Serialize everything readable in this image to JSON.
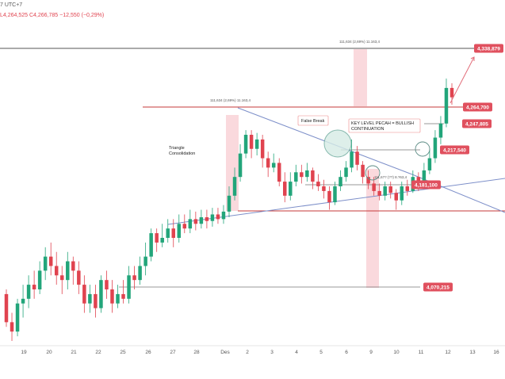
{
  "header": {
    "symbol_suffix": "7 UTC+7",
    "ohlc": "L4,264,525  C4,266,785  −12,550 (−0,29%)"
  },
  "chart_data": {
    "type": "candlestick",
    "y_range": [
      4030,
      4360
    ],
    "x_labels": [
      "19",
      "20",
      "21",
      "22",
      "25",
      "26",
      "27",
      "28",
      "Des",
      "2",
      "3",
      "4",
      "5",
      "6",
      "9",
      "10",
      "11",
      "12",
      "13",
      "16"
    ],
    "price_levels": [
      {
        "value": "4,338,879",
        "num": 4338.9,
        "style": "target"
      },
      {
        "value": "4,264,700",
        "num": 4264.7,
        "style": "resistance"
      },
      {
        "value": "4,247,805",
        "num": 4247.8,
        "style": "level"
      },
      {
        "value": "4,217,540",
        "num": 4217.5,
        "style": "level"
      },
      {
        "value": "4,181,100",
        "num": 4181.1,
        "style": "level"
      },
      {
        "value": "4,070,215",
        "num": 4070.2,
        "style": "support"
      }
    ],
    "annotations": {
      "triangle": "Triangle\nConsolidation",
      "false_break": "False Break",
      "key_level": "KEY LEVEL PECAH = BULLISH\nCONTINUATION",
      "measure_1": "111,634 (2,69%) 11.163,4",
      "measure_2": "111,634 (2,69%) 11.163,4",
      "measure_3": "111,6?? (??) 8.?63,4"
    },
    "candles": [
      [
        4080,
        4050,
        4085,
        4045
      ],
      [
        4050,
        4040,
        4060,
        4030
      ],
      [
        4040,
        4070,
        4075,
        4035
      ],
      [
        4070,
        4075,
        4090,
        4055
      ],
      [
        4075,
        4090,
        4100,
        4065
      ],
      [
        4090,
        4085,
        4105,
        4075
      ],
      [
        4085,
        4105,
        4115,
        4080
      ],
      [
        4105,
        4120,
        4130,
        4095
      ],
      [
        4120,
        4110,
        4135,
        4100
      ],
      [
        4110,
        4100,
        4125,
        4090
      ],
      [
        4100,
        4095,
        4110,
        4080
      ],
      [
        4095,
        4115,
        4125,
        4085
      ],
      [
        4115,
        4105,
        4120,
        4090
      ],
      [
        4105,
        4090,
        4115,
        4080
      ],
      [
        4090,
        4070,
        4100,
        4060
      ],
      [
        4070,
        4080,
        4090,
        4060
      ],
      [
        4080,
        4065,
        4090,
        4055
      ],
      [
        4065,
        4095,
        4100,
        4060
      ],
      [
        4095,
        4085,
        4105,
        4075
      ],
      [
        4085,
        4070,
        4095,
        4060
      ],
      [
        4070,
        4080,
        4090,
        4065
      ],
      [
        4080,
        4075,
        4095,
        4070
      ],
      [
        4075,
        4100,
        4110,
        4070
      ],
      [
        4100,
        4095,
        4110,
        4085
      ],
      [
        4095,
        4110,
        4120,
        4090
      ],
      [
        4110,
        4120,
        4135,
        4100
      ],
      [
        4120,
        4145,
        4150,
        4115
      ],
      [
        4145,
        4135,
        4150,
        4125
      ],
      [
        4135,
        4140,
        4155,
        4130
      ],
      [
        4140,
        4150,
        4160,
        4135
      ],
      [
        4150,
        4140,
        4160,
        4130
      ],
      [
        4140,
        4155,
        4165,
        4135
      ],
      [
        4155,
        4150,
        4165,
        4145
      ],
      [
        4150,
        4160,
        4170,
        4145
      ],
      [
        4160,
        4155,
        4168,
        4148
      ],
      [
        4155,
        4162,
        4170,
        4150
      ],
      [
        4162,
        4158,
        4170,
        4150
      ],
      [
        4158,
        4165,
        4172,
        4152
      ],
      [
        4165,
        4160,
        4172,
        4155
      ],
      [
        4160,
        4168,
        4175,
        4155
      ],
      [
        4168,
        4185,
        4195,
        4162
      ],
      [
        4185,
        4205,
        4215,
        4180
      ],
      [
        4205,
        4230,
        4240,
        4200
      ],
      [
        4230,
        4250,
        4255,
        4225
      ],
      [
        4250,
        4235,
        4255,
        4225
      ],
      [
        4235,
        4245,
        4252,
        4228
      ],
      [
        4245,
        4225,
        4250,
        4215
      ],
      [
        4225,
        4215,
        4232,
        4205
      ],
      [
        4215,
        4220,
        4230,
        4210
      ],
      [
        4220,
        4200,
        4225,
        4195
      ],
      [
        4200,
        4185,
        4210,
        4178
      ],
      [
        4185,
        4200,
        4210,
        4180
      ],
      [
        4200,
        4210,
        4218,
        4195
      ],
      [
        4210,
        4205,
        4218,
        4198
      ],
      [
        4205,
        4212,
        4220,
        4200
      ],
      [
        4212,
        4200,
        4215,
        4192
      ],
      [
        4200,
        4195,
        4208,
        4190
      ],
      [
        4195,
        4190,
        4202,
        4182
      ],
      [
        4190,
        4178,
        4195,
        4170
      ],
      [
        4178,
        4195,
        4200,
        4175
      ],
      [
        4195,
        4205,
        4212,
        4190
      ],
      [
        4205,
        4215,
        4222,
        4200
      ],
      [
        4215,
        4232,
        4245,
        4210
      ],
      [
        4232,
        4218,
        4238,
        4212
      ],
      [
        4218,
        4205,
        4222,
        4198
      ],
      [
        4205,
        4198,
        4212,
        4192
      ],
      [
        4198,
        4190,
        4205,
        4185
      ],
      [
        4190,
        4185,
        4198,
        4180
      ],
      [
        4185,
        4195,
        4200,
        4180
      ],
      [
        4195,
        4188,
        4200,
        4182
      ],
      [
        4188,
        4180,
        4192,
        4170
      ],
      [
        4180,
        4195,
        4200,
        4175
      ],
      [
        4195,
        4190,
        4202,
        4185
      ],
      [
        4190,
        4205,
        4212,
        4188
      ],
      [
        4205,
        4198,
        4210,
        4190
      ],
      [
        4198,
        4212,
        4220,
        4195
      ],
      [
        4212,
        4225,
        4235,
        4208
      ],
      [
        4225,
        4247,
        4255,
        4220
      ],
      [
        4247,
        4262,
        4270,
        4240
      ],
      [
        4262,
        4300,
        4310,
        4258
      ],
      [
        4300,
        4290,
        4305,
        4282
      ]
    ]
  }
}
